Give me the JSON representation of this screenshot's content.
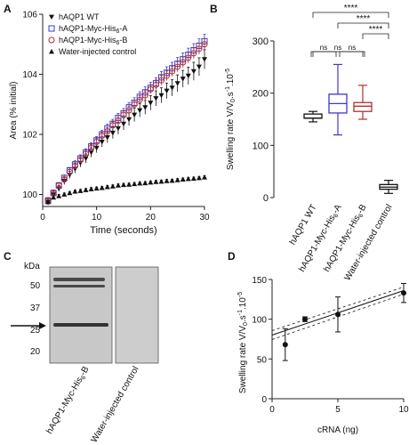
{
  "panels": {
    "a": {
      "letter": "A"
    },
    "b": {
      "letter": "B"
    },
    "c": {
      "letter": "C"
    },
    "d": {
      "letter": "D"
    }
  },
  "colors": {
    "wt": "#111111",
    "myc_a": "#3a3ad0",
    "myc_b": "#b03030",
    "water": "#111111",
    "axis": "#222222"
  },
  "chart_data": [
    {
      "panel": "A",
      "type": "scatter",
      "xlabel": "Time (seconds)",
      "ylabel": "Area (% initial)",
      "xlim": [
        0,
        30
      ],
      "ylim": [
        99.6,
        106
      ],
      "xticks": [
        0,
        10,
        20,
        30
      ],
      "yticks": [
        100,
        102,
        104,
        106
      ],
      "legend_position": "top-left",
      "x": [
        1,
        2,
        3,
        4,
        5,
        6,
        7,
        8,
        9,
        10,
        11,
        12,
        13,
        14,
        15,
        16,
        17,
        18,
        19,
        20,
        21,
        22,
        23,
        24,
        25,
        26,
        27,
        28,
        29,
        30
      ],
      "series": [
        {
          "name": "hAQP1 WT",
          "marker": "triangle-down",
          "color_key": "wt",
          "values": [
            99.75,
            100.0,
            100.2,
            100.45,
            100.65,
            100.85,
            101.05,
            101.2,
            101.4,
            101.55,
            101.75,
            101.9,
            102.05,
            102.2,
            102.35,
            102.5,
            102.65,
            102.8,
            102.9,
            103.05,
            103.2,
            103.3,
            103.45,
            103.55,
            103.7,
            103.85,
            103.95,
            104.1,
            104.25,
            104.5
          ],
          "errors": [
            0.1,
            0.1,
            0.1,
            0.12,
            0.12,
            0.14,
            0.14,
            0.15,
            0.16,
            0.16,
            0.17,
            0.18,
            0.19,
            0.2,
            0.2,
            0.21,
            0.22,
            0.22,
            0.23,
            0.24,
            0.25,
            0.25,
            0.26,
            0.27,
            0.28,
            0.28,
            0.29,
            0.3,
            0.3,
            0.32
          ]
        },
        {
          "name": "hAQP1-Myc-His6-A",
          "marker": "square-open",
          "color_key": "myc_a",
          "values": [
            99.8,
            100.05,
            100.3,
            100.55,
            100.8,
            101.0,
            101.2,
            101.4,
            101.6,
            101.8,
            102.0,
            102.2,
            102.35,
            102.55,
            102.7,
            102.9,
            103.05,
            103.25,
            103.4,
            103.55,
            103.7,
            103.9,
            104.05,
            104.2,
            104.35,
            104.5,
            104.65,
            104.8,
            104.95,
            105.1
          ],
          "errors": [
            0.1,
            0.1,
            0.1,
            0.1,
            0.1,
            0.12,
            0.12,
            0.12,
            0.13,
            0.13,
            0.14,
            0.14,
            0.15,
            0.15,
            0.16,
            0.16,
            0.17,
            0.17,
            0.18,
            0.18,
            0.19,
            0.19,
            0.2,
            0.2,
            0.21,
            0.21,
            0.22,
            0.22,
            0.23,
            0.23
          ]
        },
        {
          "name": "hAQP1-Myc-His6-B",
          "marker": "circle-open",
          "color_key": "myc_b",
          "values": [
            99.8,
            100.05,
            100.3,
            100.5,
            100.75,
            100.95,
            101.15,
            101.35,
            101.55,
            101.75,
            101.95,
            102.1,
            102.3,
            102.45,
            102.65,
            102.8,
            103.0,
            103.15,
            103.3,
            103.5,
            103.65,
            103.8,
            103.95,
            104.1,
            104.25,
            104.4,
            104.55,
            104.7,
            104.85,
            105.0
          ],
          "errors": [
            0.08,
            0.08,
            0.08,
            0.09,
            0.09,
            0.1,
            0.1,
            0.1,
            0.11,
            0.11,
            0.12,
            0.12,
            0.12,
            0.13,
            0.13,
            0.14,
            0.14,
            0.14,
            0.15,
            0.15,
            0.16,
            0.16,
            0.16,
            0.17,
            0.17,
            0.18,
            0.18,
            0.18,
            0.19,
            0.19
          ]
        },
        {
          "name": "Water-injected control",
          "marker": "triangle-up",
          "color_key": "water",
          "values": [
            99.75,
            99.9,
            99.95,
            100.0,
            100.05,
            100.1,
            100.12,
            100.15,
            100.18,
            100.2,
            100.22,
            100.25,
            100.27,
            100.3,
            100.32,
            100.33,
            100.35,
            100.37,
            100.38,
            100.4,
            100.42,
            100.43,
            100.45,
            100.46,
            100.48,
            100.5,
            100.52,
            100.53,
            100.55,
            100.57
          ],
          "errors": [
            0.05,
            0.05,
            0.05,
            0.05,
            0.05,
            0.05,
            0.05,
            0.05,
            0.05,
            0.05,
            0.05,
            0.05,
            0.05,
            0.05,
            0.05,
            0.05,
            0.05,
            0.05,
            0.05,
            0.05,
            0.05,
            0.05,
            0.05,
            0.05,
            0.05,
            0.05,
            0.05,
            0.05,
            0.05,
            0.06
          ]
        }
      ],
      "legend_labels": [
        "hAQP1 WT",
        "hAQP1-Myc-His",
        "hAQP1-Myc-His",
        "Water-injected control"
      ],
      "legend_subscripts": [
        "",
        "6",
        "6",
        ""
      ],
      "legend_suffixes": [
        "",
        "-A",
        "-B",
        ""
      ]
    },
    {
      "panel": "B",
      "type": "box",
      "ylabel": "Swelling rate V/V",
      "ylabel_sub": "0",
      "ylabel_unit": ".s",
      "ylabel_sup1": "-1",
      "ylabel_mid": ".10",
      "ylabel_sup2": "-5",
      "ylim": [
        0,
        300
      ],
      "yticks": [
        0,
        100,
        200,
        300
      ],
      "categories": [
        "hAQP1 WT",
        "hAQP1-Myc-His6-A",
        "hAQP1-Myc-His6-B",
        "Water-injected control"
      ],
      "category_labels": [
        {
          "pre": "hAQP1 WT",
          "sub": "",
          "post": ""
        },
        {
          "pre": "hAQP1-Myc-His",
          "sub": "6",
          "post": "-A"
        },
        {
          "pre": "hAQP1-Myc-His",
          "sub": "6",
          "post": "-B"
        },
        {
          "pre": "Water-injected control",
          "sub": "",
          "post": ""
        }
      ],
      "boxes": [
        {
          "min": 145,
          "q1": 152,
          "median": 152,
          "q3": 160,
          "max": 165,
          "color_key": "wt"
        },
        {
          "min": 120,
          "q1": 162,
          "median": 180,
          "q3": 198,
          "max": 255,
          "color_key": "myc_a"
        },
        {
          "min": 150,
          "q1": 165,
          "median": 175,
          "q3": 182,
          "max": 215,
          "color_key": "myc_b"
        },
        {
          "min": 8,
          "q1": 16,
          "median": 20,
          "q3": 25,
          "max": 33,
          "color_key": "water"
        }
      ],
      "significance": [
        {
          "from": 0,
          "to": 3,
          "label": "****"
        },
        {
          "from": 1,
          "to": 3,
          "label": "****"
        },
        {
          "from": 2,
          "to": 3,
          "label": "****"
        },
        {
          "from": 0,
          "to": 2,
          "label": "ns"
        },
        {
          "from": 0,
          "to": 1,
          "label": "ns"
        },
        {
          "from": 1,
          "to": 2,
          "label": "ns"
        }
      ]
    },
    {
      "panel": "C",
      "type": "blot",
      "unit_label": "kDa",
      "markers_kda": [
        50,
        37,
        25,
        20
      ],
      "marker_labels": [
        "50",
        "37",
        "25",
        "20"
      ],
      "arrow_at_kda": 27,
      "lanes": [
        {
          "pre": "hAQP1-Myc-His",
          "sub": "6",
          "post": "-B"
        },
        {
          "pre": "Water-injected control",
          "sub": "",
          "post": ""
        }
      ]
    },
    {
      "panel": "D",
      "type": "scatter",
      "xlabel": "cRNA (ng)",
      "ylabel": "Swelling rate V/V",
      "ylabel_sub": "0",
      "ylabel_unit": ".s",
      "ylabel_sup1": "-1",
      "ylabel_mid": ".10",
      "ylabel_sup2": "-5",
      "xlim": [
        0,
        10
      ],
      "ylim": [
        0,
        150
      ],
      "xticks": [
        0,
        5,
        10
      ],
      "yticks": [
        0,
        50,
        100,
        150
      ],
      "points": [
        {
          "x": 1,
          "y": 68,
          "err": 20
        },
        {
          "x": 2.5,
          "y": 100,
          "err": 3
        },
        {
          "x": 5,
          "y": 106,
          "err": 22
        },
        {
          "x": 10,
          "y": 133,
          "err": 12
        }
      ],
      "fit": {
        "x": [
          0,
          10
        ],
        "y": [
          80,
          136
        ]
      }
    }
  ]
}
